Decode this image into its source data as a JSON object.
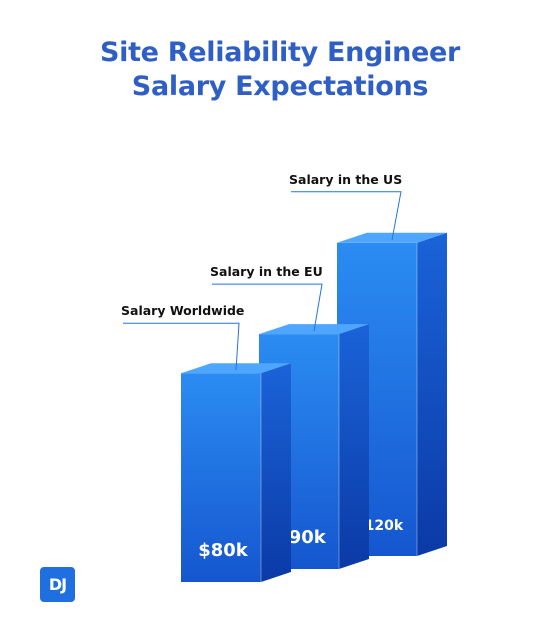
{
  "colors": {
    "title": "#2f5fc4",
    "bar_front_light": "#2b8cf3",
    "bar_front_dark": "#1556cf",
    "bar_side_light": "#1a63d8",
    "bar_side_dark": "#0b3aa6",
    "bar_top": "#4fa6ff",
    "label_text": "#111111",
    "leader_line": "#1e73e8",
    "logo_bg": "#1f6fe0"
  },
  "chart_data": {
    "type": "bar",
    "title": "Site Reliability Engineer Salary Expectations",
    "title_lines": [
      "Site Reliability Engineer",
      "Salary Expectations"
    ],
    "categories": [
      "Salary Worldwide",
      "Salary in the EU",
      "Salary in the US"
    ],
    "values": [
      80,
      90,
      120
    ],
    "value_labels": [
      "$80k",
      "$90k",
      "$120k"
    ],
    "unit": "k USD",
    "ylim": [
      0,
      130
    ],
    "grid": false,
    "legend": "none"
  },
  "logo": {
    "text": "DJ"
  }
}
